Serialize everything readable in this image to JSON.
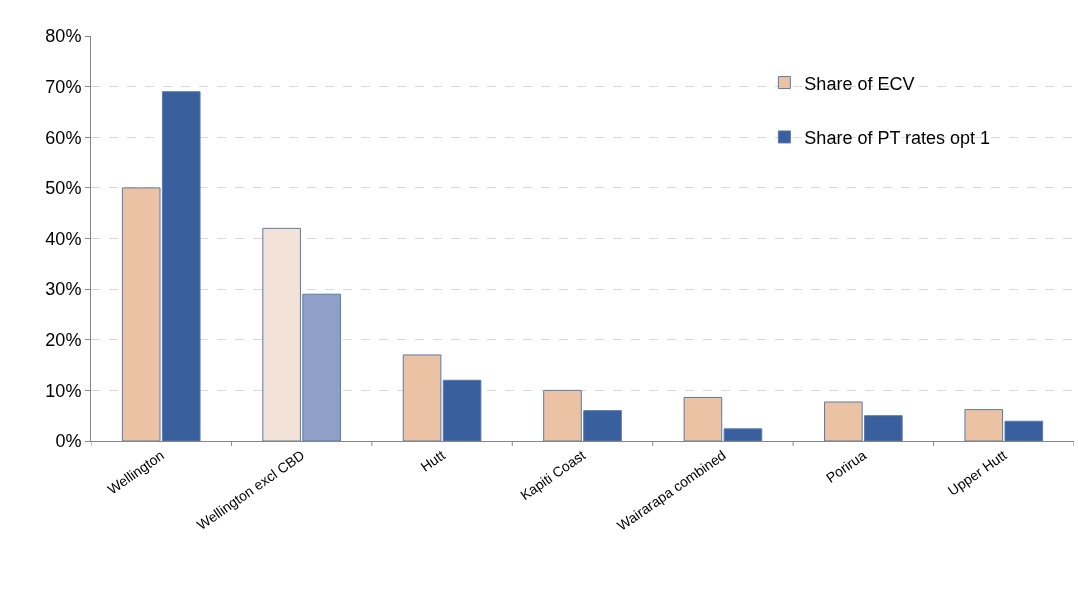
{
  "chart_data": {
    "type": "bar",
    "categories": [
      "Wellington",
      "Wellington excl CBD",
      "Hutt",
      "Kapiti Coast",
      "Wairarapa combined",
      "Porirua",
      "Upper Hutt"
    ],
    "series": [
      {
        "name": "Share of ECV",
        "colors": [
          "#ebc3a4",
          "#f2e2d8",
          "#ebc3a4",
          "#ebc3a4",
          "#ebc3a4",
          "#ebc3a4",
          "#ebc3a4"
        ],
        "values": [
          50,
          42,
          17,
          10,
          8.6,
          7.7,
          6.2
        ]
      },
      {
        "name": "Share of PT rates opt 1",
        "colors": [
          "#3a5f9f",
          "#8fa0c8",
          "#3a5f9f",
          "#3a5f9f",
          "#3a5f9f",
          "#3a5f9f",
          "#3a5f9f"
        ],
        "values": [
          69,
          29,
          12,
          6,
          2.4,
          5,
          3.9
        ]
      }
    ],
    "ylim": [
      0,
      80
    ],
    "yticks": [
      {
        "value": 0,
        "label": "0%"
      },
      {
        "value": 10,
        "label": "10%"
      },
      {
        "value": 20,
        "label": "20%"
      },
      {
        "value": 30,
        "label": "30%"
      },
      {
        "value": 40,
        "label": "40%"
      },
      {
        "value": 50,
        "label": "50%"
      },
      {
        "value": 60,
        "label": "60%"
      },
      {
        "value": 70,
        "label": "70%"
      },
      {
        "value": 80,
        "label": "80%"
      }
    ],
    "grid": "y",
    "legend": "top right"
  }
}
